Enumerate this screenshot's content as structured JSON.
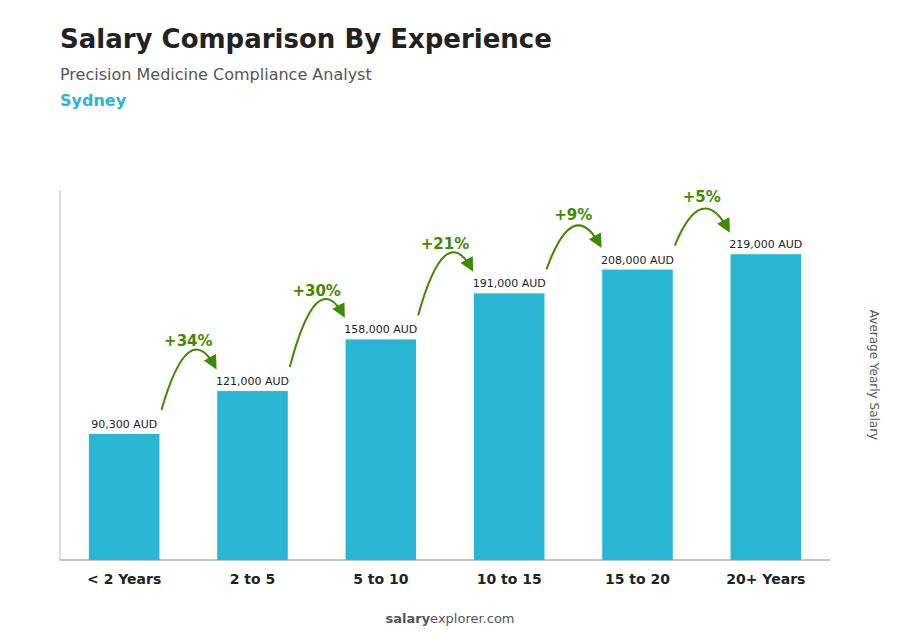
{
  "chart_data": {
    "type": "bar",
    "title": "Salary Comparison By Experience",
    "subtitle": "Precision Medicine Compliance Analyst",
    "city": "Sydney",
    "categories": [
      "< 2 Years",
      "2 to 5",
      "5 to 10",
      "10 to 15",
      "15 to 20",
      "20+ Years"
    ],
    "values": [
      90300,
      121000,
      158000,
      191000,
      208000,
      219000
    ],
    "value_labels": [
      "90,300 AUD",
      "121,000 AUD",
      "158,000 AUD",
      "191,000 AUD",
      "208,000 AUD",
      "219,000 AUD"
    ],
    "data_labels": true,
    "annotations": [
      "+34%",
      "+30%",
      "+21%",
      "+9%",
      "+5%"
    ],
    "y_label": "Average Yearly Salary",
    "footer": [
      "salary",
      "explorer.com"
    ],
    "color": "#29b6d4",
    "ylim": [
      0,
      265000
    ],
    "tick_labels": "x",
    "grid": false
  }
}
